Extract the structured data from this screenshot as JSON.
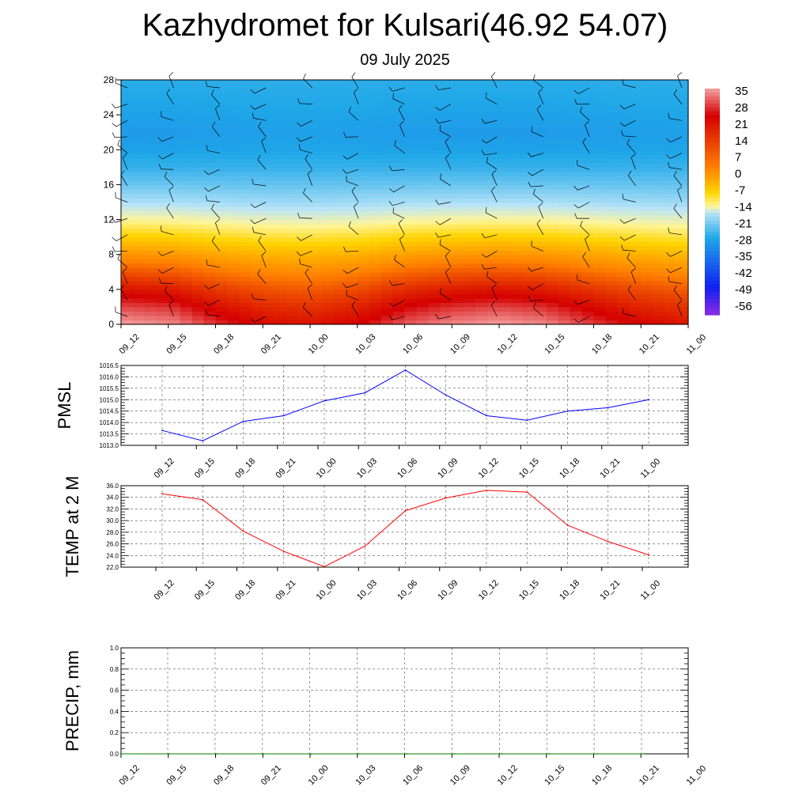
{
  "header": {
    "title": "Kazhydromet for Kulsari(46.92 54.07)",
    "subtitle": "09 July 2025"
  },
  "chart_data": [
    {
      "type": "heatmap",
      "title": "",
      "xlabel": "",
      "ylabel": "",
      "x_tick_labels": [
        "09_12",
        "09_15",
        "09_18",
        "09_21",
        "10_00",
        "10_03",
        "10_06",
        "10_09",
        "10_12",
        "10_15",
        "10_18",
        "10_21",
        "11_00"
      ],
      "y_ticks": [
        0,
        4,
        8,
        12,
        16,
        20,
        24,
        28
      ],
      "ylim": [
        0,
        28
      ],
      "colorbar": {
        "labels": [
          "35",
          "28",
          "21",
          "14",
          "7",
          "0",
          "-7",
          "-14",
          "-21",
          "-28",
          "-35",
          "-42",
          "-49",
          "-56"
        ],
        "values": [
          35,
          28,
          21,
          14,
          7,
          0,
          -7,
          -14,
          -21,
          -28,
          -35,
          -42,
          -49,
          -56
        ],
        "colors": {
          "top_pink": "#f4a0a0",
          "red": "#d40000",
          "orange": "#ff8000",
          "yellow": "#fff59a",
          "light_blue": "#b8e4f8",
          "cyan": "#20a8e8",
          "blue": "#1020f0",
          "purple": "#8a2be2"
        }
      },
      "wind_barbs": true,
      "surface_values_by_time": [
        35,
        34,
        30,
        27,
        26,
        28,
        32,
        34,
        35,
        34,
        31,
        28,
        26
      ],
      "level_profile_offsets": [
        0,
        -4,
        -9,
        -16,
        -24,
        -33,
        -42,
        -50,
        -56,
        -61,
        -64,
        -65,
        -64,
        -63,
        -62
      ]
    },
    {
      "type": "line",
      "ylabel": "PMSL",
      "series": [
        {
          "name": "",
          "color": "#0000ff",
          "values": [
            1013.65,
            1013.2,
            1014.05,
            1014.3,
            1014.95,
            1015.3,
            1016.3,
            1015.2,
            1014.3,
            1014.1,
            1014.5,
            1014.65,
            1015.0
          ]
        }
      ],
      "x_tick_labels": [
        "09_12",
        "09_15",
        "09_18",
        "09_21",
        "10_00",
        "10_03",
        "10_06",
        "10_09",
        "10_12",
        "10_15",
        "10_18",
        "10_21",
        "11_00"
      ],
      "y_tick_labels": [
        "1016.5",
        "1016.0",
        "1015.5",
        "1015.0",
        "1014.5",
        "1014.0",
        "1013.5",
        "1013.0"
      ],
      "ylim": [
        1013.0,
        1016.5
      ],
      "grid": true
    },
    {
      "type": "line",
      "ylabel": "TEMP at 2 M",
      "series": [
        {
          "name": "",
          "color": "#ff0000",
          "values": [
            34.6,
            33.6,
            28.2,
            24.7,
            22.1,
            25.6,
            31.7,
            33.9,
            35.2,
            34.9,
            29.2,
            26.4,
            24.1
          ]
        }
      ],
      "x_tick_labels": [
        "09_12",
        "09_15",
        "09_18",
        "09_21",
        "10_00",
        "10_03",
        "10_06",
        "10_09",
        "10_12",
        "10_15",
        "10_18",
        "10_21",
        "11_00"
      ],
      "y_tick_labels": [
        "36.0",
        "34.0",
        "32.0",
        "30.0",
        "28.0",
        "26.0",
        "24.0",
        "22.0"
      ],
      "ylim": [
        22.0,
        36.0
      ],
      "grid": true
    },
    {
      "type": "line",
      "ylabel": "PRECIP, mm",
      "series": [
        {
          "name": "",
          "color": "#008000",
          "values": [
            0,
            0,
            0,
            0,
            0,
            0,
            0,
            0,
            0,
            0,
            0,
            0
          ]
        }
      ],
      "x_tick_labels": [
        "09_12",
        "09_15",
        "09_18",
        "09_21",
        "10_00",
        "10_03",
        "10_06",
        "10_09",
        "10_12",
        "10_15",
        "10_18",
        "10_21",
        "11_00"
      ],
      "y_tick_labels": [
        "1.0",
        "0.8",
        "0.6",
        "0.4",
        "0.2",
        "0.0"
      ],
      "ylim": [
        0.0,
        1.0
      ],
      "grid": true
    }
  ]
}
